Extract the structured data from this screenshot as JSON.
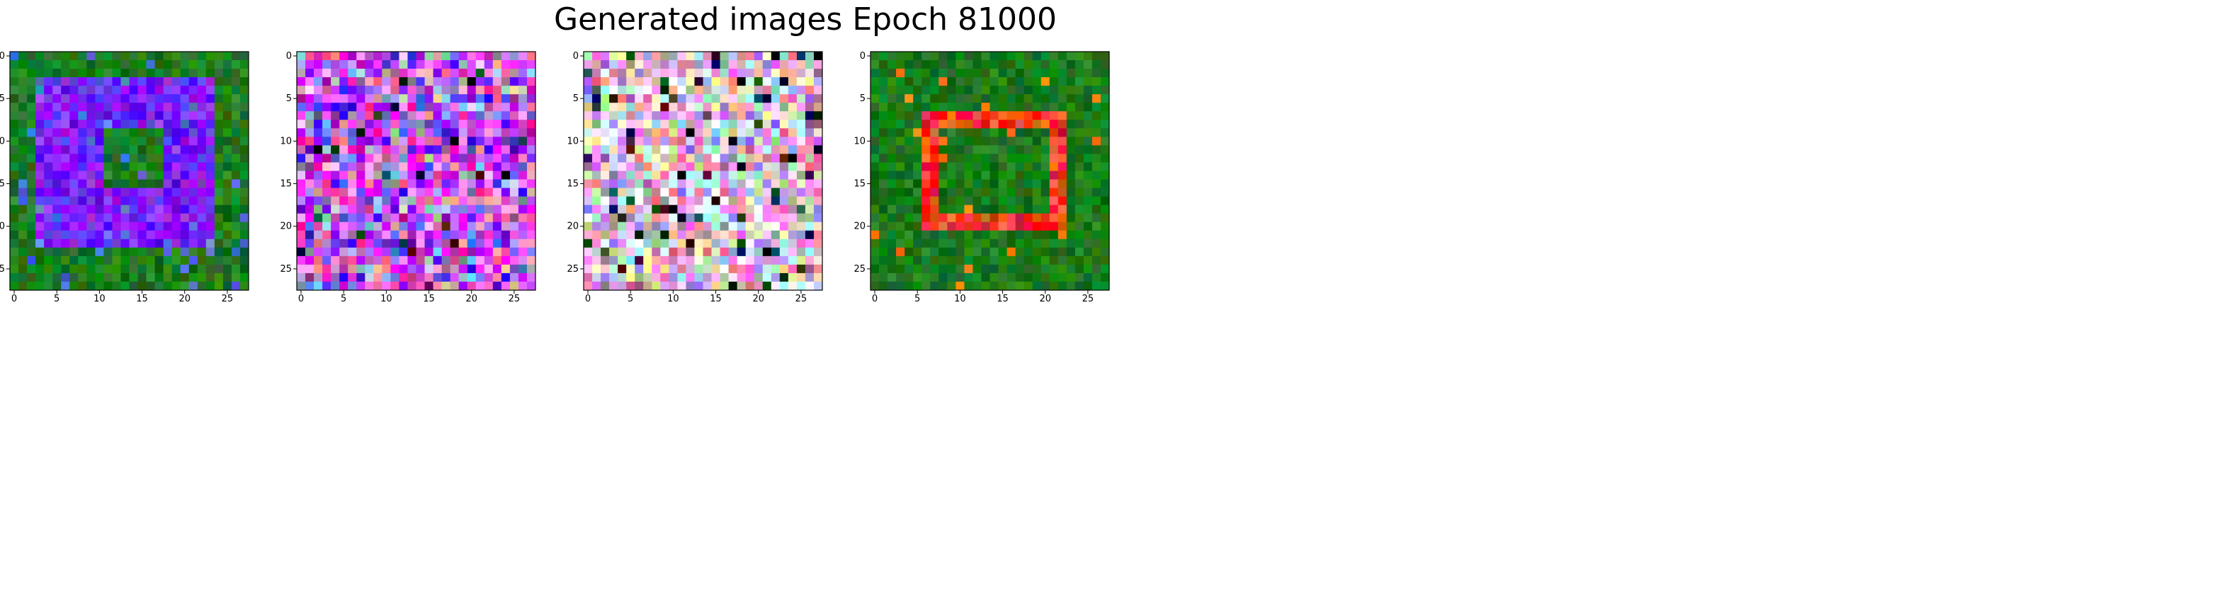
{
  "chart_data": {
    "type": "heatmap",
    "title": "Generated images Epoch 81000",
    "image_size": 28,
    "x_ticks": [
      0,
      5,
      10,
      15,
      20,
      25
    ],
    "y_ticks": [
      0,
      5,
      10,
      15,
      20,
      25
    ],
    "xlim": [
      -0.5,
      27.5
    ],
    "ylim": [
      27.5,
      -0.5
    ],
    "grid": false,
    "panels": [
      {
        "name": "",
        "description_pattern": "green-background-violet-frame",
        "background_color": "#1f7a1f",
        "foreground_color": "#7b1fff",
        "accent_color": "#4b6bdf"
      },
      {
        "name": "",
        "description_pattern": "noisy-purple-pink-mosaic",
        "background_color": "#b68bd3",
        "foreground_color": "#7d2cff",
        "accent_color": "#ff4fd8"
      },
      {
        "name": "",
        "description_pattern": "noisy-pastel-mosaic",
        "background_color": "#cfa5c4",
        "foreground_color": "#e6d2e0",
        "accent_color": "#111111"
      },
      {
        "name": "",
        "description_pattern": "green-background-red-frame",
        "background_color": "#1b7a1b",
        "foreground_color": "#ff3b1f",
        "accent_color": "#ff7a00"
      }
    ]
  }
}
